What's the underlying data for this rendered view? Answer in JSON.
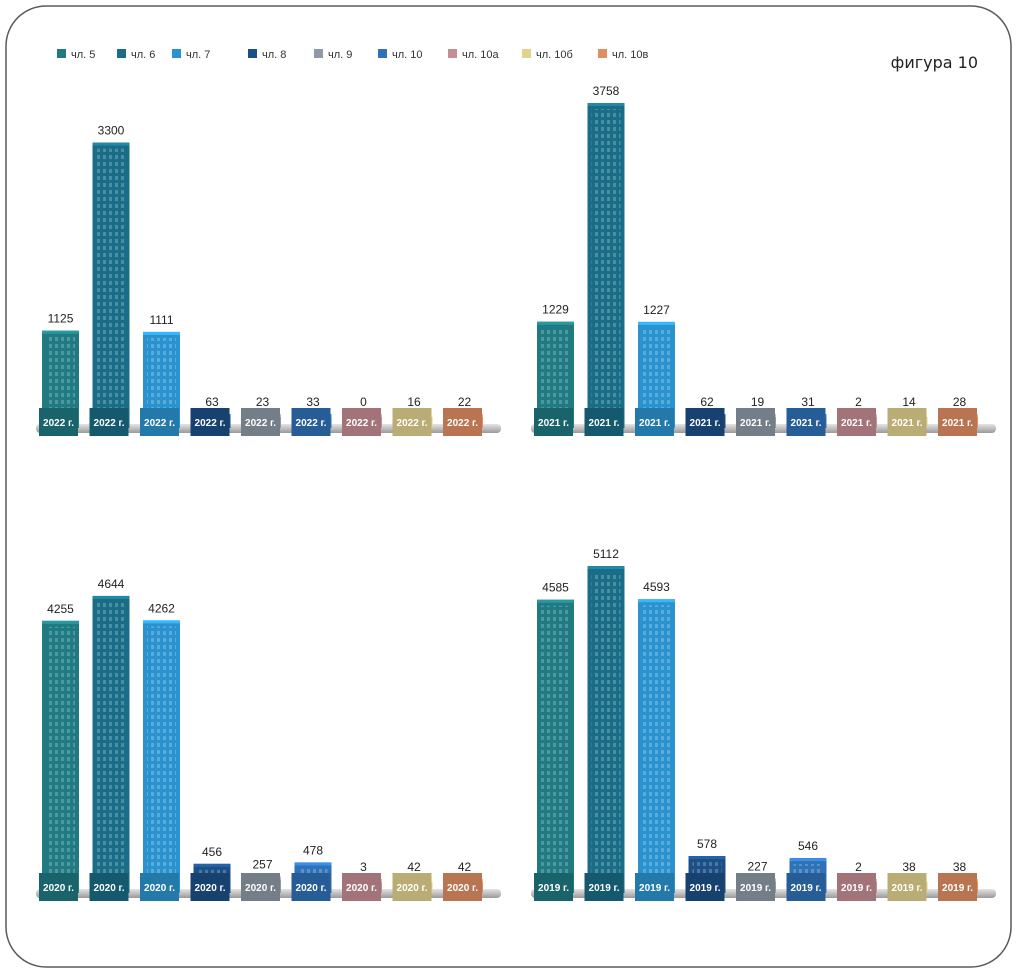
{
  "figure_title": "фигура 10",
  "legend": [
    {
      "label": "чл. 5",
      "color": "#1f7a82"
    },
    {
      "label": "чл. 6",
      "color": "#1a6d86"
    },
    {
      "label": "чл. 7",
      "color": "#2a93cf"
    },
    {
      "label": "чл. 8",
      "color": "#1c4f86"
    },
    {
      "label": "чл. 9",
      "color": "#8e9aa6"
    },
    {
      "label": "чл. 10",
      "color": "#2f72b8"
    },
    {
      "label": "чл. 10а",
      "color": "#c68d94"
    },
    {
      "label": "чл. 10б",
      "color": "#e2d28e"
    },
    {
      "label": "чл. 10в",
      "color": "#e28e63"
    }
  ],
  "chart_data": [
    {
      "type": "bar",
      "year_label": "2022 г.",
      "categories": [
        "чл. 5",
        "чл. 6",
        "чл. 7",
        "чл. 8",
        "чл. 9",
        "чл. 10",
        "чл. 10а",
        "чл. 10б",
        "чл. 10в"
      ],
      "values": [
        1125,
        3300,
        1111,
        63,
        23,
        33,
        0,
        16,
        22
      ],
      "value_labels": [
        "1125",
        "3300",
        "1111",
        "63",
        "23",
        "33",
        "0",
        "16",
        "22"
      ]
    },
    {
      "type": "bar",
      "year_label": "2021 г.",
      "categories": [
        "чл. 5",
        "чл. 6",
        "чл. 7",
        "чл. 8",
        "чл. 9",
        "чл. 10",
        "чл. 10а",
        "чл. 10б",
        "чл. 10в"
      ],
      "values": [
        1229,
        3758,
        1227,
        62,
        19,
        31,
        2,
        14,
        28
      ],
      "value_labels": [
        "1229",
        "3758",
        "1227",
        "62",
        "19",
        "31",
        "2",
        "14",
        "28"
      ]
    },
    {
      "type": "bar",
      "year_label": "2020 г.",
      "categories": [
        "чл. 5",
        "чл. 6",
        "чл. 7",
        "чл. 8",
        "чл. 9",
        "чл. 10",
        "чл. 10а",
        "чл. 10б",
        "чл. 10в"
      ],
      "values": [
        4255,
        4644,
        4262,
        456,
        257,
        478,
        3,
        42,
        42
      ],
      "value_labels": [
        "4255",
        "4644",
        "4262",
        "456",
        "257",
        "478",
        "3",
        "42",
        "42"
      ]
    },
    {
      "type": "bar",
      "year_label": "2019 г.",
      "categories": [
        "чл. 5",
        "чл. 6",
        "чл. 7",
        "чл. 8",
        "чл. 9",
        "чл. 10",
        "чл. 10а",
        "чл. 10б",
        "чл. 10в"
      ],
      "values": [
        4585,
        5112,
        4593,
        578,
        227,
        546,
        2,
        38,
        38
      ],
      "value_labels": [
        "4585",
        "5112",
        "4593",
        "578",
        "227",
        "546",
        "2",
        "38",
        "38"
      ]
    }
  ]
}
